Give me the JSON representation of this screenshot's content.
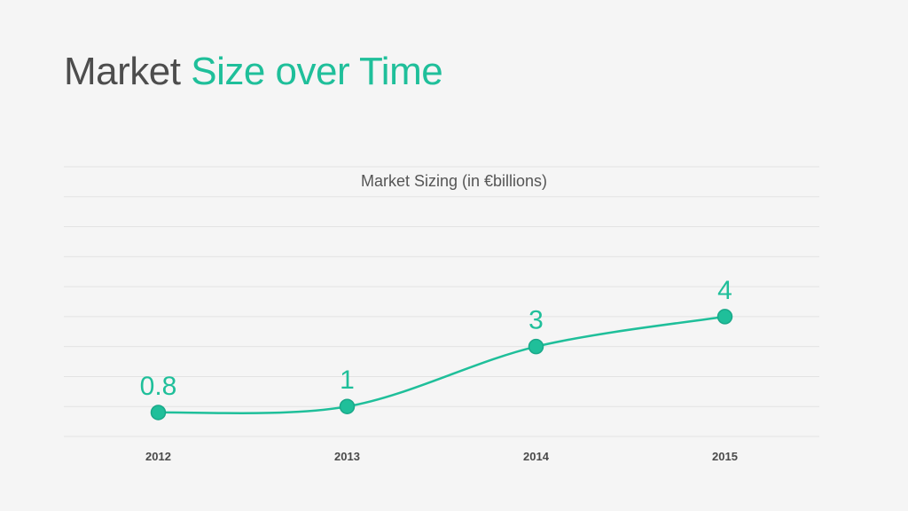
{
  "page": {
    "title_main": "Market",
    "title_accent": "Size over Time"
  },
  "colors": {
    "accent": "#1fbf9a",
    "grid": "#e3e3e3",
    "background": "#f5f5f5"
  },
  "chart_data": {
    "type": "line",
    "title": "Market Sizing (in €billions)",
    "categories": [
      "2012",
      "2013",
      "2014",
      "2015"
    ],
    "series": [
      {
        "values": [
          0.8,
          1,
          3,
          4
        ],
        "data_labels": [
          "0.8",
          "1",
          "3",
          "4"
        ]
      }
    ],
    "ylim": [
      0,
      9
    ],
    "grid": true,
    "smooth": true,
    "xlabel": "",
    "ylabel": ""
  }
}
